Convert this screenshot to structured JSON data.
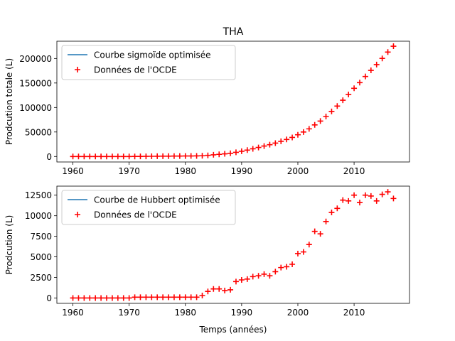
{
  "title": "THA",
  "chart_data": [
    {
      "type": "scatter",
      "title": "THA",
      "xlabel": "",
      "ylabel": "Prodcution totale (L)",
      "xlim": [
        1957.15,
        2019.85
      ],
      "ylim": [
        -11200,
        235300
      ],
      "xticks": [
        1960,
        1970,
        1980,
        1990,
        2000,
        2010
      ],
      "yticks": [
        0,
        50000,
        100000,
        150000,
        200000
      ],
      "ytick_labels": [
        "0",
        "50000",
        "100000",
        "150000",
        "200000"
      ],
      "legend_position": "upper-left",
      "series": [
        {
          "name": "Courbe sigmoïde optimisée",
          "kind": "line",
          "color": "#1f77b4",
          "x": [],
          "y": []
        },
        {
          "name": "Données de l'OCDE",
          "kind": "scatter",
          "marker": "+",
          "color": "#ff0000",
          "x": [
            1960,
            1961,
            1962,
            1963,
            1964,
            1965,
            1966,
            1967,
            1968,
            1969,
            1970,
            1971,
            1972,
            1973,
            1974,
            1975,
            1976,
            1977,
            1978,
            1979,
            1980,
            1981,
            1982,
            1983,
            1984,
            1985,
            1986,
            1987,
            1988,
            1989,
            1990,
            1991,
            1992,
            1993,
            1994,
            1995,
            1996,
            1997,
            1998,
            1999,
            2000,
            2001,
            2002,
            2003,
            2004,
            2005,
            2006,
            2007,
            2008,
            2009,
            2010,
            2011,
            2012,
            2013,
            2014,
            2015,
            2016,
            2017
          ],
          "y": [
            0,
            0,
            0,
            0,
            0,
            0,
            0,
            0,
            0,
            0,
            0,
            100,
            200,
            300,
            400,
            500,
            600,
            700,
            800,
            900,
            1000,
            1100,
            1200,
            1500,
            2300,
            3400,
            4400,
            5400,
            6500,
            8500,
            10700,
            13000,
            15700,
            18400,
            21300,
            24100,
            27300,
            31000,
            34800,
            38900,
            44300,
            49900,
            56400,
            64500,
            72300,
            81600,
            92000,
            102900,
            114800,
            126600,
            139200,
            150800,
            163300,
            175800,
            187600,
            200200,
            213100,
            225100
          ]
        }
      ]
    },
    {
      "type": "scatter",
      "title": "",
      "xlabel": "Temps (années)",
      "ylabel": "Prodcution (L)",
      "xlim": [
        1957.15,
        2019.85
      ],
      "ylim": [
        -650,
        13600
      ],
      "xticks": [
        1960,
        1970,
        1980,
        1990,
        2000,
        2010
      ],
      "yticks": [
        0,
        2500,
        5000,
        7500,
        10000,
        12500
      ],
      "ytick_labels": [
        "0",
        "2500",
        "5000",
        "7500",
        "10000",
        "12500"
      ],
      "legend_position": "upper-left",
      "series": [
        {
          "name": "Courbe de Hubbert optimisée",
          "kind": "line",
          "color": "#1f77b4",
          "x": [],
          "y": []
        },
        {
          "name": "Données de l'OCDE",
          "kind": "scatter",
          "marker": "+",
          "color": "#ff0000",
          "x": [
            1960,
            1961,
            1962,
            1963,
            1964,
            1965,
            1966,
            1967,
            1968,
            1969,
            1970,
            1971,
            1972,
            1973,
            1974,
            1975,
            1976,
            1977,
            1978,
            1979,
            1980,
            1981,
            1982,
            1983,
            1984,
            1985,
            1986,
            1987,
            1988,
            1989,
            1990,
            1991,
            1992,
            1993,
            1994,
            1995,
            1996,
            1997,
            1998,
            1999,
            2000,
            2001,
            2002,
            2003,
            2004,
            2005,
            2006,
            2007,
            2008,
            2009,
            2010,
            2011,
            2012,
            2013,
            2014,
            2015,
            2016,
            2017
          ],
          "y": [
            0,
            0,
            0,
            0,
            0,
            0,
            0,
            0,
            0,
            0,
            0,
            100,
            100,
            100,
            100,
            100,
            100,
            100,
            100,
            100,
            100,
            100,
            100,
            300,
            800,
            1100,
            1100,
            900,
            1000,
            2000,
            2200,
            2300,
            2600,
            2700,
            2900,
            2700,
            3200,
            3700,
            3800,
            4100,
            5400,
            5600,
            6500,
            8100,
            7800,
            9300,
            10400,
            10900,
            11900,
            11800,
            12500,
            11600,
            12500,
            12400,
            11800,
            12600,
            12900,
            12100
          ]
        }
      ]
    }
  ]
}
